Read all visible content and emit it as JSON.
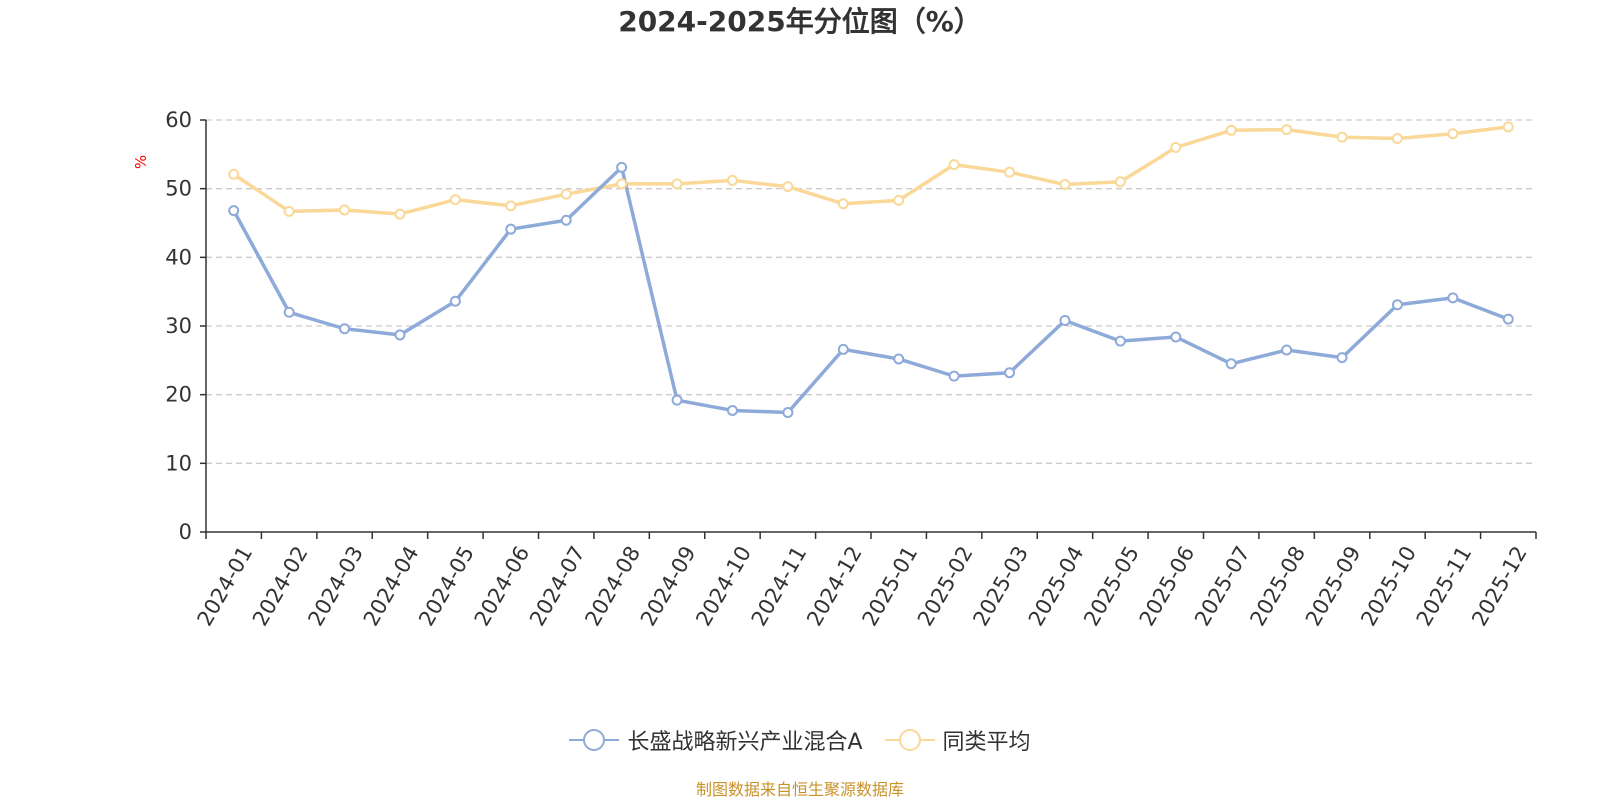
{
  "chart_data": {
    "type": "line",
    "title": "2024-2025年分位图（%）",
    "ylabel": "%",
    "ylim": [
      0,
      60
    ],
    "yticks": [
      0,
      10,
      20,
      30,
      40,
      50,
      60
    ],
    "grid": true,
    "legend_position": "bottom-center",
    "categories": [
      "2024-01",
      "2024-02",
      "2024-03",
      "2024-04",
      "2024-05",
      "2024-06",
      "2024-07",
      "2024-08",
      "2024-09",
      "2024-10",
      "2024-11",
      "2024-12",
      "2025-01",
      "2025-02",
      "2025-03",
      "2025-04",
      "2025-05",
      "2025-06",
      "2025-07",
      "2025-08",
      "2025-09",
      "2025-10",
      "2025-11",
      "2025-12"
    ],
    "series": [
      {
        "name": "长盛战略新兴产业混合A",
        "color": "#8eaad8",
        "values": [
          46.8,
          32.0,
          29.6,
          28.7,
          33.6,
          44.1,
          45.4,
          53.1,
          19.2,
          17.7,
          17.4,
          26.6,
          25.2,
          22.7,
          23.2,
          30.8,
          27.8,
          28.4,
          24.5,
          26.5,
          25.4,
          33.1,
          34.1,
          31.0
        ]
      },
      {
        "name": "同类平均",
        "color": "#f9d898",
        "values": [
          52.1,
          46.7,
          46.9,
          46.3,
          48.4,
          47.5,
          49.2,
          50.7,
          50.7,
          51.2,
          50.3,
          47.8,
          48.3,
          53.5,
          52.4,
          50.6,
          51.0,
          56.0,
          58.5,
          58.6,
          57.5,
          57.3,
          58.0,
          59.0
        ]
      }
    ]
  },
  "legend": {
    "items": [
      "长盛战略新兴产业混合A",
      "同类平均"
    ]
  },
  "source_note": "制图数据来自恒生聚源数据库"
}
